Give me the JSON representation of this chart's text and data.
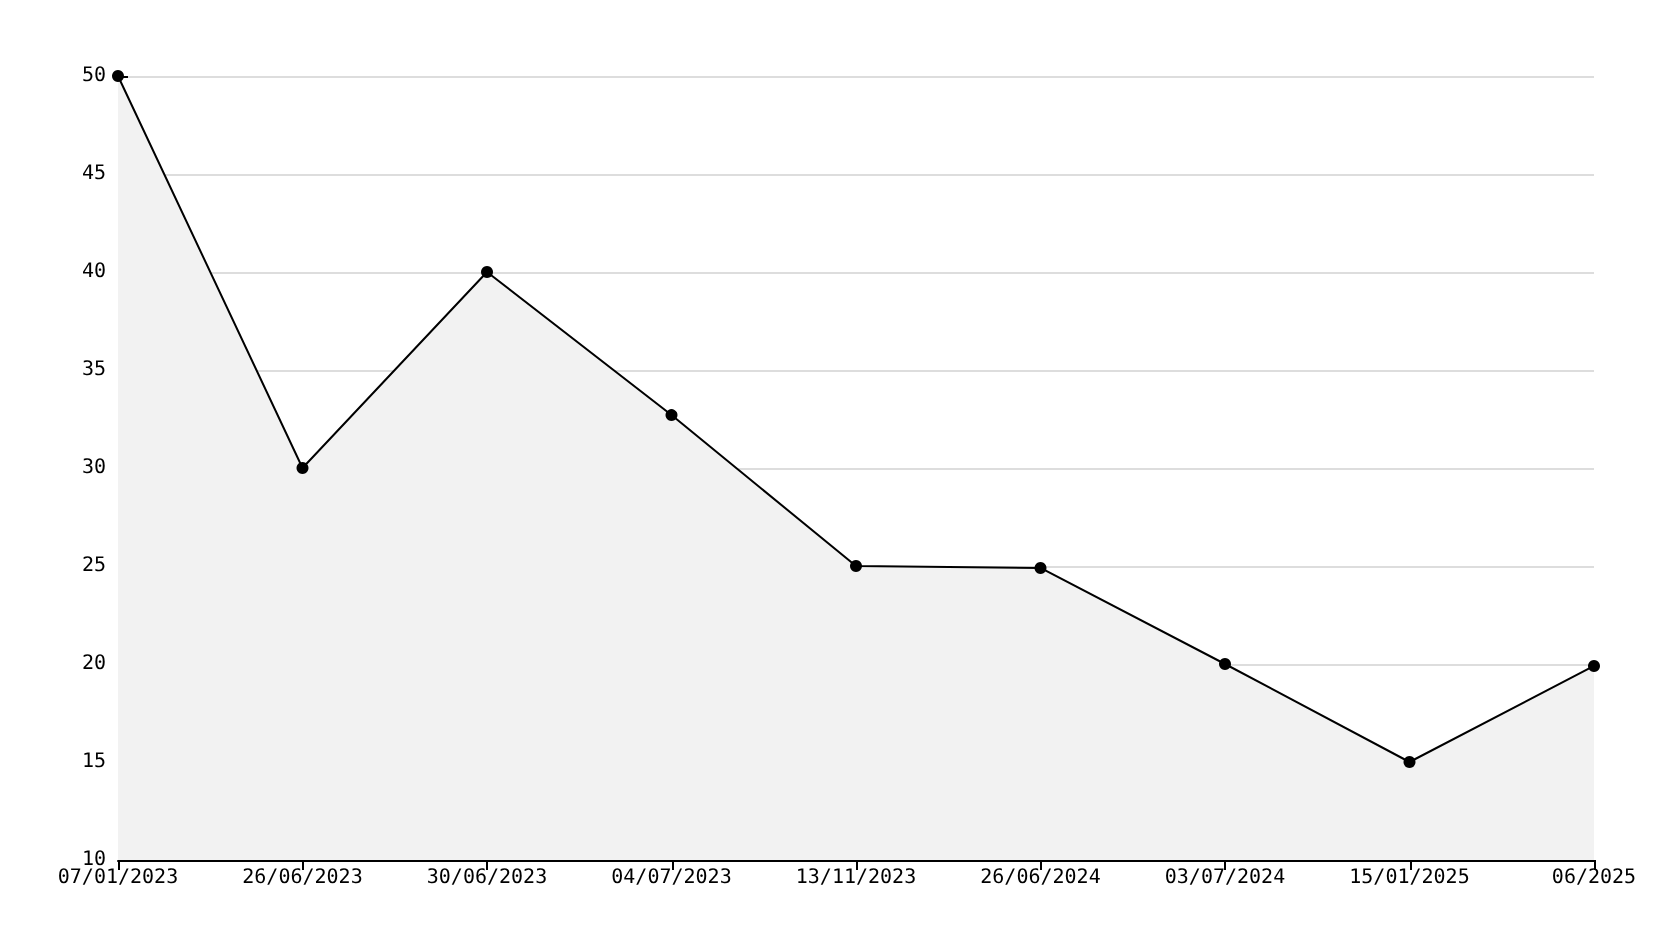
{
  "chart_data": {
    "type": "area",
    "categories": [
      "07/01/2023",
      "26/06/2023",
      "30/06/2023",
      "04/07/2023",
      "13/11/2023",
      "26/06/2024",
      "03/07/2024",
      "15/01/2025",
      "06/2025"
    ],
    "series": [
      {
        "color": "#000000",
        "values": [
          50,
          30,
          40,
          32.7,
          25,
          24.9,
          20,
          15,
          19.9
        ]
      }
    ],
    "ylim": [
      10,
      50
    ],
    "yticks": [
      10,
      15,
      20,
      25,
      30,
      35,
      40,
      45,
      50
    ],
    "grid": "y",
    "marker": "circle",
    "line_style": "solid"
  }
}
